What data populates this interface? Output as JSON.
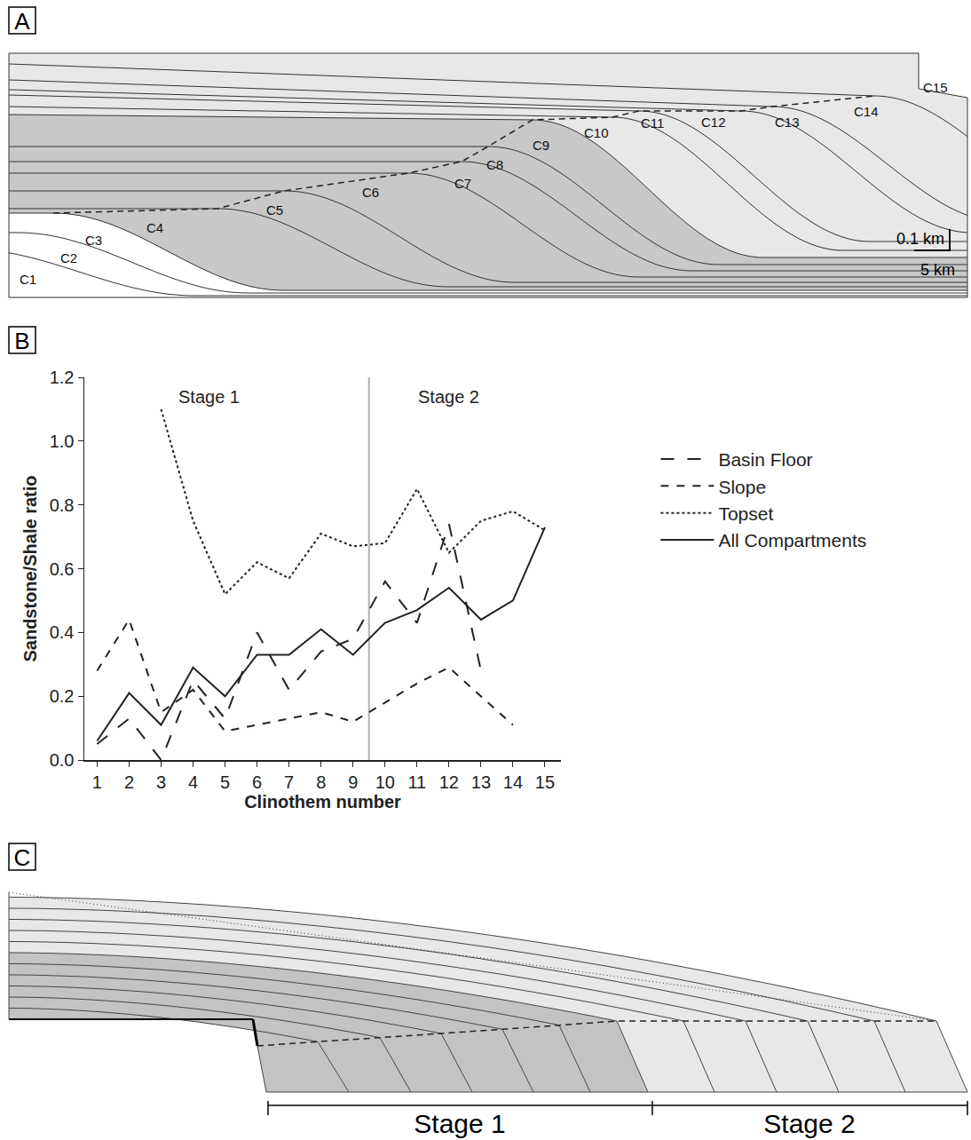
{
  "panels": {
    "A": {
      "letter": "A",
      "labels": [
        "C1",
        "C2",
        "C3",
        "C4",
        "C5",
        "C6",
        "C7",
        "C8",
        "C9",
        "C10",
        "C11",
        "C12",
        "C13",
        "C14",
        "C15"
      ],
      "scale": {
        "vertical": "0.1 km",
        "horizontal": "5 km"
      }
    },
    "B": {
      "letter": "B"
    },
    "C": {
      "letter": "C",
      "stages": [
        "Stage 1",
        "Stage 2"
      ]
    }
  },
  "chart_data": {
    "type": "line",
    "x_label": "Clinothem number",
    "y_label": "Sandstone/Shale ratio",
    "x": [
      1,
      2,
      3,
      4,
      5,
      6,
      7,
      8,
      9,
      10,
      11,
      12,
      13,
      14,
      15
    ],
    "series": [
      {
        "name": "Basin Floor",
        "color": "#222222",
        "line_style": "longdash",
        "values": [
          0.05,
          0.13,
          0.0,
          0.25,
          0.13,
          0.4,
          0.22,
          0.34,
          0.38,
          0.56,
          0.43,
          0.74,
          0.28,
          null,
          null
        ]
      },
      {
        "name": "Slope",
        "color": "#222222",
        "line_style": "dash",
        "values": [
          0.28,
          0.44,
          0.15,
          0.22,
          0.09,
          0.11,
          0.13,
          0.15,
          0.12,
          0.18,
          0.24,
          0.29,
          0.2,
          0.11,
          null
        ]
      },
      {
        "name": "Topset",
        "color": "#222222",
        "line_style": "dot",
        "values": [
          null,
          null,
          1.1,
          0.75,
          0.52,
          0.62,
          0.57,
          0.71,
          0.67,
          0.68,
          0.85,
          0.65,
          0.75,
          0.78,
          0.72
        ]
      },
      {
        "name": "All Compartments",
        "color": "#222222",
        "line_style": "solid",
        "values": [
          0.06,
          0.21,
          0.11,
          0.29,
          0.2,
          0.33,
          0.33,
          0.41,
          0.33,
          0.43,
          0.47,
          0.54,
          0.44,
          0.5,
          0.73
        ]
      }
    ],
    "xlim": [
      0.6,
      15.5
    ],
    "xticks": [
      1,
      2,
      3,
      4,
      5,
      6,
      7,
      8,
      9,
      10,
      11,
      12,
      13,
      14,
      15
    ],
    "ylim": [
      0,
      1.2
    ],
    "yticks": [
      {
        "value": 0,
        "label": "0.0"
      },
      {
        "value": 0.2,
        "label": "0.2"
      },
      {
        "value": 0.4,
        "label": "0.4"
      },
      {
        "value": 0.6,
        "label": "0.6"
      },
      {
        "value": 0.8,
        "label": "0.8"
      },
      {
        "value": 1.0,
        "label": "1.0"
      },
      {
        "value": 1.2,
        "label": "1.2"
      }
    ],
    "annotations": [
      {
        "text": "Stage 1",
        "x": 4.5,
        "y": 1.14
      },
      {
        "text": "Stage 2",
        "x": 12,
        "y": 1.14
      }
    ],
    "vlines": [
      9.5
    ],
    "grid": false,
    "legend": "right"
  }
}
